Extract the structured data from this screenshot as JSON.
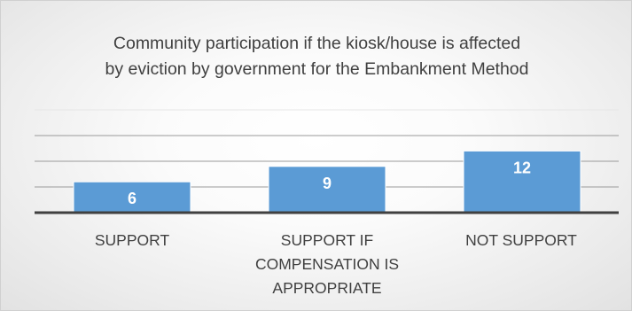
{
  "chart_data": {
    "type": "bar",
    "title_lines": [
      "Community participation if the kiosk/house is affected",
      "by eviction by government for the Embankment Method"
    ],
    "categories": [
      [
        "SUPPORT"
      ],
      [
        "SUPPORT IF",
        "COMPENSATION IS",
        "APPROPRIATE"
      ],
      [
        "NOT SUPPORT"
      ]
    ],
    "values": [
      6,
      9,
      12
    ],
    "ylim": [
      0,
      20
    ],
    "gridlines": true,
    "data_labels": true,
    "bar_color": "#5b9bd5",
    "label_color": "#ffffff",
    "axis_color": "#404040"
  }
}
